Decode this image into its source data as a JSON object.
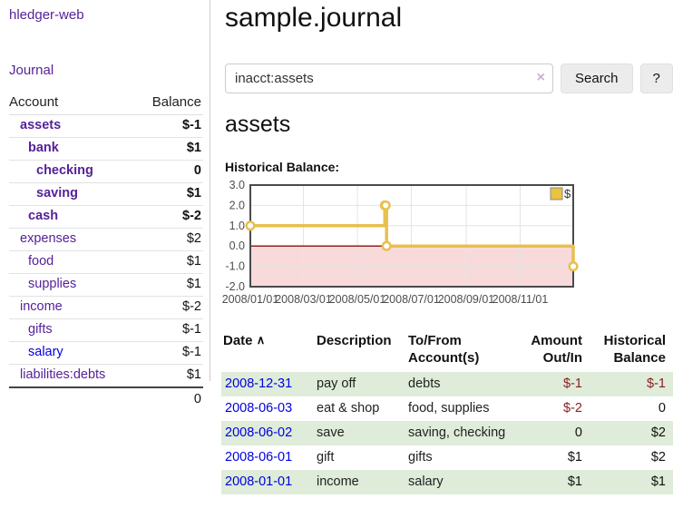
{
  "colors": {
    "link_purple": "#552299",
    "link_blue": "#0000e0",
    "negative_strong": "#8b1c1c",
    "negative_muted": "#b46a6a",
    "row_stripe_green": "#deecd9",
    "series_gold": "#e8c04d",
    "chart_negative_fill": "#f9dada",
    "chart_zero_line": "#8c0d0d"
  },
  "sidebar": {
    "brand": "hledger-web",
    "journal_link": "Journal",
    "accounts_table": {
      "headers": {
        "account": "Account",
        "balance": "Balance"
      },
      "rows": [
        {
          "name": "assets",
          "level": 1,
          "bold": true,
          "balance": "$-1",
          "balance_style": "neg-strong"
        },
        {
          "name": "bank",
          "level": 2,
          "bold": true,
          "balance": "$1",
          "balance_style": "pos-strong"
        },
        {
          "name": "checking",
          "level": 3,
          "bold": true,
          "balance": "0",
          "balance_style": "pos-strong"
        },
        {
          "name": "saving",
          "level": 3,
          "bold": true,
          "balance": "$1",
          "balance_style": "pos-strong"
        },
        {
          "name": "cash",
          "level": 2,
          "bold": true,
          "balance": "$-2",
          "balance_style": "neg-strong"
        },
        {
          "name": "expenses",
          "level": 1,
          "bold": false,
          "balance": "$2",
          "balance_style": "pos"
        },
        {
          "name": "food",
          "level": 2,
          "bold": false,
          "balance": "$1",
          "balance_style": "pos"
        },
        {
          "name": "supplies",
          "level": 2,
          "bold": false,
          "balance": "$1",
          "balance_style": "pos"
        },
        {
          "name": "income",
          "level": 1,
          "bold": false,
          "balance": "$-2",
          "balance_style": "neg"
        },
        {
          "name": "gifts",
          "level": 2,
          "bold": false,
          "balance": "$-1",
          "balance_style": "neg"
        },
        {
          "name": "salary",
          "level": 2,
          "bold": false,
          "balance": "$-1",
          "balance_style": "neg",
          "link_color": "blue"
        },
        {
          "name": "liabilities:debts",
          "level": 1,
          "bold": false,
          "balance": "$1",
          "balance_style": "pos"
        }
      ],
      "total": "0"
    }
  },
  "header": {
    "title": "sample.journal"
  },
  "search": {
    "query": "inacct:assets",
    "clear_icon": "×",
    "search_button": "Search",
    "help_button": "?"
  },
  "account_page": {
    "heading": "assets",
    "chart_label": "Historical Balance:"
  },
  "chart_data": {
    "type": "line",
    "title": "Historical Balance",
    "step": true,
    "series": [
      {
        "name": "$",
        "points": [
          [
            "2008-01-01",
            1
          ],
          [
            "2008-06-01",
            2
          ],
          [
            "2008-06-02",
            2
          ],
          [
            "2008-06-03",
            0
          ],
          [
            "2008-12-31",
            -1
          ]
        ]
      }
    ],
    "xlim": [
      "2008-01-01",
      "2008-12-31"
    ],
    "ylim": [
      -2,
      3
    ],
    "x_ticks": [
      {
        "date": "2008-01-01",
        "label": "2008/01/01"
      },
      {
        "date": "2008-03-01",
        "label": "2008/03/01"
      },
      {
        "date": "2008-05-01",
        "label": "2008/05/01"
      },
      {
        "date": "2008-07-01",
        "label": "2008/07/01"
      },
      {
        "date": "2008-09-01",
        "label": "2008/09/01"
      },
      {
        "date": "2008-11-01",
        "label": "2008/11/01"
      }
    ],
    "y_ticks": [
      {
        "value": 3,
        "label": "3.0"
      },
      {
        "value": 2,
        "label": "2.0"
      },
      {
        "value": 1,
        "label": "1.0"
      },
      {
        "value": 0,
        "label": "0.0"
      },
      {
        "value": -1,
        "label": "-1.0"
      },
      {
        "value": -2,
        "label": "-2.0"
      }
    ],
    "grid": true,
    "legend": {
      "position": "top-right",
      "label": "$"
    },
    "negative_region_shaded": true
  },
  "register_table": {
    "headers": {
      "date": "Date",
      "sort_icon": "∧",
      "description": "Description",
      "accounts": "To/From Account(s)",
      "amount": "Amount Out/In",
      "balance": "Historical Balance"
    },
    "rows": [
      {
        "date": "2008-12-31",
        "description": "pay off",
        "accounts": "debts",
        "amount": "$-1",
        "amount_style": "neg-strong",
        "balance": "$-1",
        "balance_style": "neg-strong",
        "striped": true
      },
      {
        "date": "2008-06-03",
        "description": "eat & shop",
        "accounts": "food, supplies",
        "amount": "$-2",
        "amount_style": "neg-strong",
        "balance": "0",
        "balance_style": "pos",
        "striped": false
      },
      {
        "date": "2008-06-02",
        "description": "save",
        "accounts": "saving, checking",
        "amount": "0",
        "amount_style": "pos",
        "balance": "$2",
        "balance_style": "pos",
        "striped": true
      },
      {
        "date": "2008-06-01",
        "description": "gift",
        "accounts": "gifts",
        "amount": "$1",
        "amount_style": "pos",
        "balance": "$2",
        "balance_style": "pos",
        "striped": false
      },
      {
        "date": "2008-01-01",
        "description": "income",
        "accounts": "salary",
        "amount": "$1",
        "amount_style": "pos",
        "balance": "$1",
        "balance_style": "pos",
        "striped": true
      }
    ]
  }
}
